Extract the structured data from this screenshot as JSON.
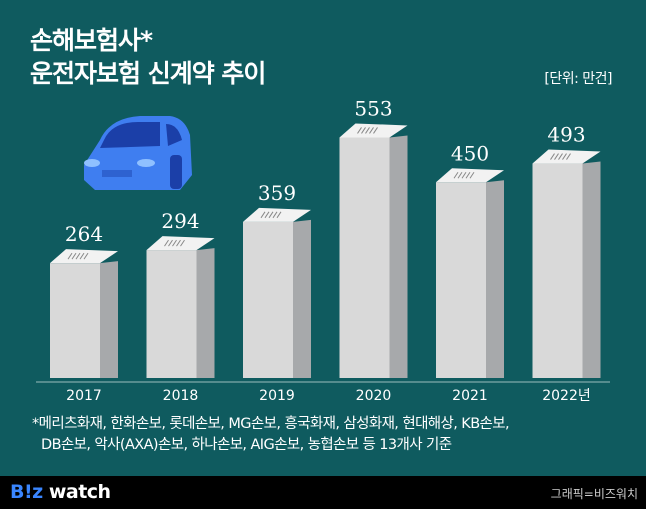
{
  "title_lines": [
    "손해보험사*",
    "운전자보험 신계약 추이"
  ],
  "unit": "[단위: 만건]",
  "chart_data": {
    "type": "bar",
    "title": "손해보험사* 운전자보험 신계약 추이",
    "unit": "[단위: 만건]",
    "categories": [
      "2017",
      "2018",
      "2019",
      "2020",
      "2021",
      "2022년"
    ],
    "values": [
      264,
      294,
      359,
      553,
      450,
      493
    ],
    "ylim": [
      0,
      600
    ],
    "grid": false,
    "colors": {
      "bar_front": "#d9d9d9",
      "bar_side": "#a7a9ab",
      "background": "#0f5b5f"
    }
  },
  "footnote": [
    "*메리츠화재, 한화손보, 롯데손보, MG손보, 흥국화재, 삼성화재, 현대해상, KB손보,",
    "DB손보, 악사(AXA)손보, 하나손보, AIG손보, 농협손보 등 13개사 기준"
  ],
  "footer": {
    "logo_b": "B!z",
    "logo_rest": " watch",
    "credit": "그래픽=비즈워치"
  },
  "illustration": "car-icon"
}
